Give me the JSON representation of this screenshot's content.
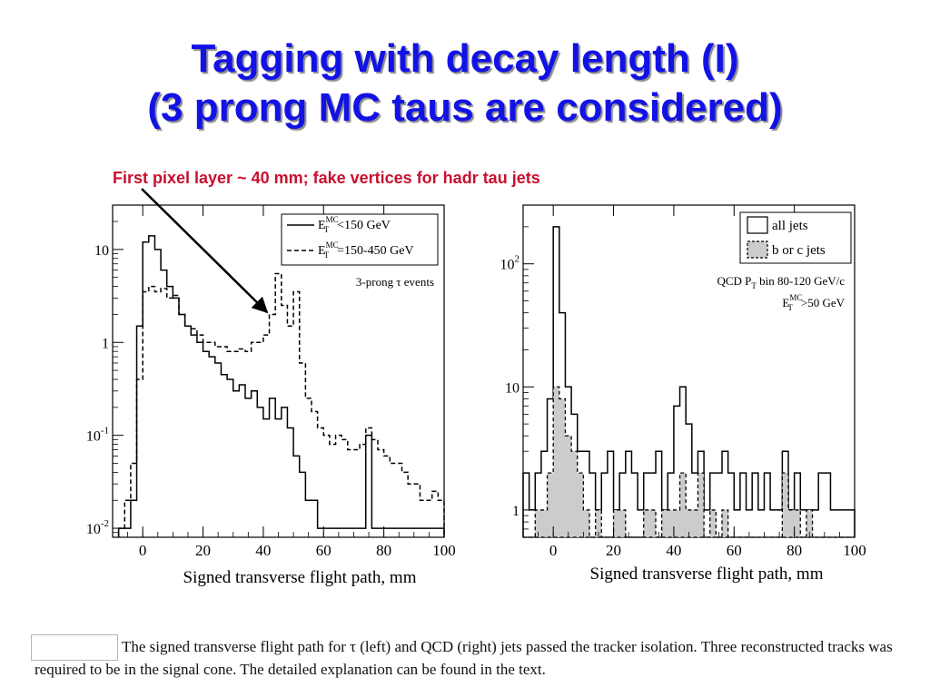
{
  "slide": {
    "title_line1": "Tagging with decay length (I)",
    "title_line2": "(3 prong MC taus are considered)",
    "annotation": "First pixel layer ~ 40 mm; fake vertices for hadr tau jets",
    "caption": "The signed transverse flight path for τ (left) and QCD (right) jets passed the tracker isolation. Three reconstructed tracks was required to be in the signal cone. The detailed explanation can be found in the text."
  },
  "chart_data": [
    {
      "type": "line",
      "xlabel": "Signed transverse flight path, mm",
      "xlim": [
        -10,
        100
      ],
      "ylim": [
        0.008,
        30
      ],
      "yscale": "log",
      "x_ticks": [
        0,
        20,
        40,
        60,
        80,
        100
      ],
      "y_ticks": [
        {
          "v": 0.01,
          "b": "10",
          "e": "-2"
        },
        {
          "v": 0.1,
          "b": "10",
          "e": "-1"
        },
        {
          "v": 1,
          "b": "1",
          "e": ""
        },
        {
          "v": 10,
          "b": "10",
          "e": ""
        }
      ],
      "legend_position": "top-right",
      "annotation_text": "3-prong τ events",
      "series": [
        {
          "name": "E_T^MC<150 GeV",
          "style": "solid",
          "x": [
            -8,
            -6,
            -4,
            -2,
            0,
            2,
            4,
            6,
            8,
            10,
            12,
            14,
            16,
            18,
            20,
            22,
            24,
            26,
            28,
            30,
            32,
            34,
            36,
            38,
            40,
            42,
            44,
            46,
            48,
            50,
            52,
            54,
            56,
            58,
            60,
            62,
            64,
            66,
            68,
            70,
            72,
            74,
            76,
            78,
            80,
            82,
            84,
            86,
            88,
            90,
            92,
            94,
            96,
            98
          ],
          "values": [
            0.01,
            0.01,
            0.02,
            1.5,
            12,
            14,
            10,
            6,
            4,
            3,
            2,
            1.5,
            1.2,
            1.0,
            0.8,
            0.7,
            0.6,
            0.45,
            0.4,
            0.3,
            0.35,
            0.25,
            0.3,
            0.2,
            0.15,
            0.25,
            0.15,
            0.2,
            0.12,
            0.06,
            0.04,
            0.02,
            0.02,
            0.01,
            0.01,
            0.01,
            0.01,
            0.01,
            0.01,
            0.01,
            0.01,
            0.1,
            0.01,
            0.01,
            0.01,
            0.01,
            0.01,
            0.01,
            0.01,
            0.01,
            0.01,
            0.01,
            0.01,
            0.01
          ]
        },
        {
          "name": "E_T^MC=150-450 GeV",
          "style": "dashed",
          "x": [
            -8,
            -6,
            -4,
            -2,
            0,
            2,
            4,
            6,
            8,
            10,
            12,
            14,
            16,
            18,
            20,
            22,
            24,
            26,
            28,
            30,
            32,
            34,
            36,
            38,
            40,
            42,
            44,
            46,
            48,
            50,
            52,
            54,
            56,
            58,
            60,
            62,
            64,
            66,
            68,
            70,
            72,
            74,
            76,
            78,
            80,
            82,
            84,
            86,
            88,
            90,
            92,
            94,
            96,
            98
          ],
          "values": [
            0.01,
            0.02,
            0.05,
            0.4,
            3.5,
            4.0,
            3.5,
            3.8,
            3.0,
            3.2,
            2.0,
            1.5,
            1.4,
            1.2,
            1.0,
            1.0,
            0.9,
            0.9,
            0.8,
            0.8,
            0.85,
            0.8,
            1.0,
            1.0,
            1.2,
            2.0,
            5.5,
            2.5,
            1.5,
            3.5,
            0.6,
            0.25,
            0.18,
            0.12,
            0.1,
            0.08,
            0.1,
            0.09,
            0.07,
            0.07,
            0.08,
            0.12,
            0.09,
            0.07,
            0.06,
            0.05,
            0.05,
            0.04,
            0.03,
            0.03,
            0.02,
            0.02,
            0.025,
            0.02
          ]
        }
      ]
    },
    {
      "type": "bar",
      "xlabel": "Signed transverse flight path, mm",
      "xlim": [
        -10,
        100
      ],
      "ylim": [
        0.6,
        300
      ],
      "yscale": "log",
      "x_ticks": [
        0,
        20,
        40,
        60,
        80,
        100
      ],
      "y_ticks": [
        {
          "v": 1,
          "b": "1",
          "e": ""
        },
        {
          "v": 10,
          "b": "10",
          "e": ""
        },
        {
          "v": 100,
          "b": "10",
          "e": "2"
        }
      ],
      "legend_position": "top-right",
      "annotation_line1": "QCD P",
      "annotation_line1_sub": "T",
      "annotation_line1_rest": " bin 80-120 GeV/c",
      "annotation_line2": ">50 GeV",
      "series": [
        {
          "name": "all jets",
          "style": "outline",
          "x": [
            -10,
            -8,
            -6,
            -4,
            -2,
            0,
            2,
            4,
            6,
            8,
            10,
            12,
            14,
            16,
            18,
            20,
            22,
            24,
            26,
            28,
            30,
            32,
            34,
            36,
            38,
            40,
            42,
            44,
            46,
            48,
            50,
            52,
            54,
            56,
            58,
            60,
            62,
            64,
            66,
            68,
            70,
            72,
            74,
            76,
            78,
            80,
            82,
            84,
            86,
            88,
            90,
            92,
            94,
            96,
            98
          ],
          "values": [
            2,
            1,
            2,
            3,
            8,
            200,
            40,
            10,
            6,
            3,
            3,
            2,
            1,
            2,
            3,
            1,
            2,
            3,
            2,
            1,
            2,
            2,
            3,
            1,
            2,
            7,
            10,
            5,
            2,
            3,
            1,
            2,
            2,
            3,
            2,
            1,
            2,
            1,
            2,
            1,
            2,
            1,
            1,
            3,
            1,
            2,
            1,
            1,
            1,
            2,
            2,
            1,
            1,
            1,
            1
          ]
        },
        {
          "name": "b or c jets",
          "style": "hatched",
          "x": [
            -10,
            -8,
            -6,
            -4,
            -2,
            0,
            2,
            4,
            6,
            8,
            10,
            12,
            14,
            16,
            18,
            20,
            22,
            24,
            26,
            28,
            30,
            32,
            34,
            36,
            38,
            40,
            42,
            44,
            46,
            48,
            50,
            52,
            54,
            56,
            58,
            60,
            62,
            64,
            66,
            68,
            70,
            72,
            74,
            76,
            78,
            80,
            82,
            84,
            86,
            88,
            90,
            92,
            94,
            96,
            98
          ],
          "values": [
            0,
            0,
            1,
            1,
            2,
            10,
            8,
            4,
            3,
            2,
            1,
            0,
            1,
            0,
            0,
            1,
            1,
            0,
            0,
            0,
            1,
            1,
            0,
            1,
            1,
            1,
            2,
            1,
            1,
            2,
            0,
            1,
            0,
            1,
            0,
            0,
            0,
            0,
            0,
            0,
            0,
            0,
            0,
            2,
            1,
            1,
            0,
            1,
            0,
            0,
            0,
            0,
            0,
            0,
            0
          ]
        }
      ]
    }
  ]
}
